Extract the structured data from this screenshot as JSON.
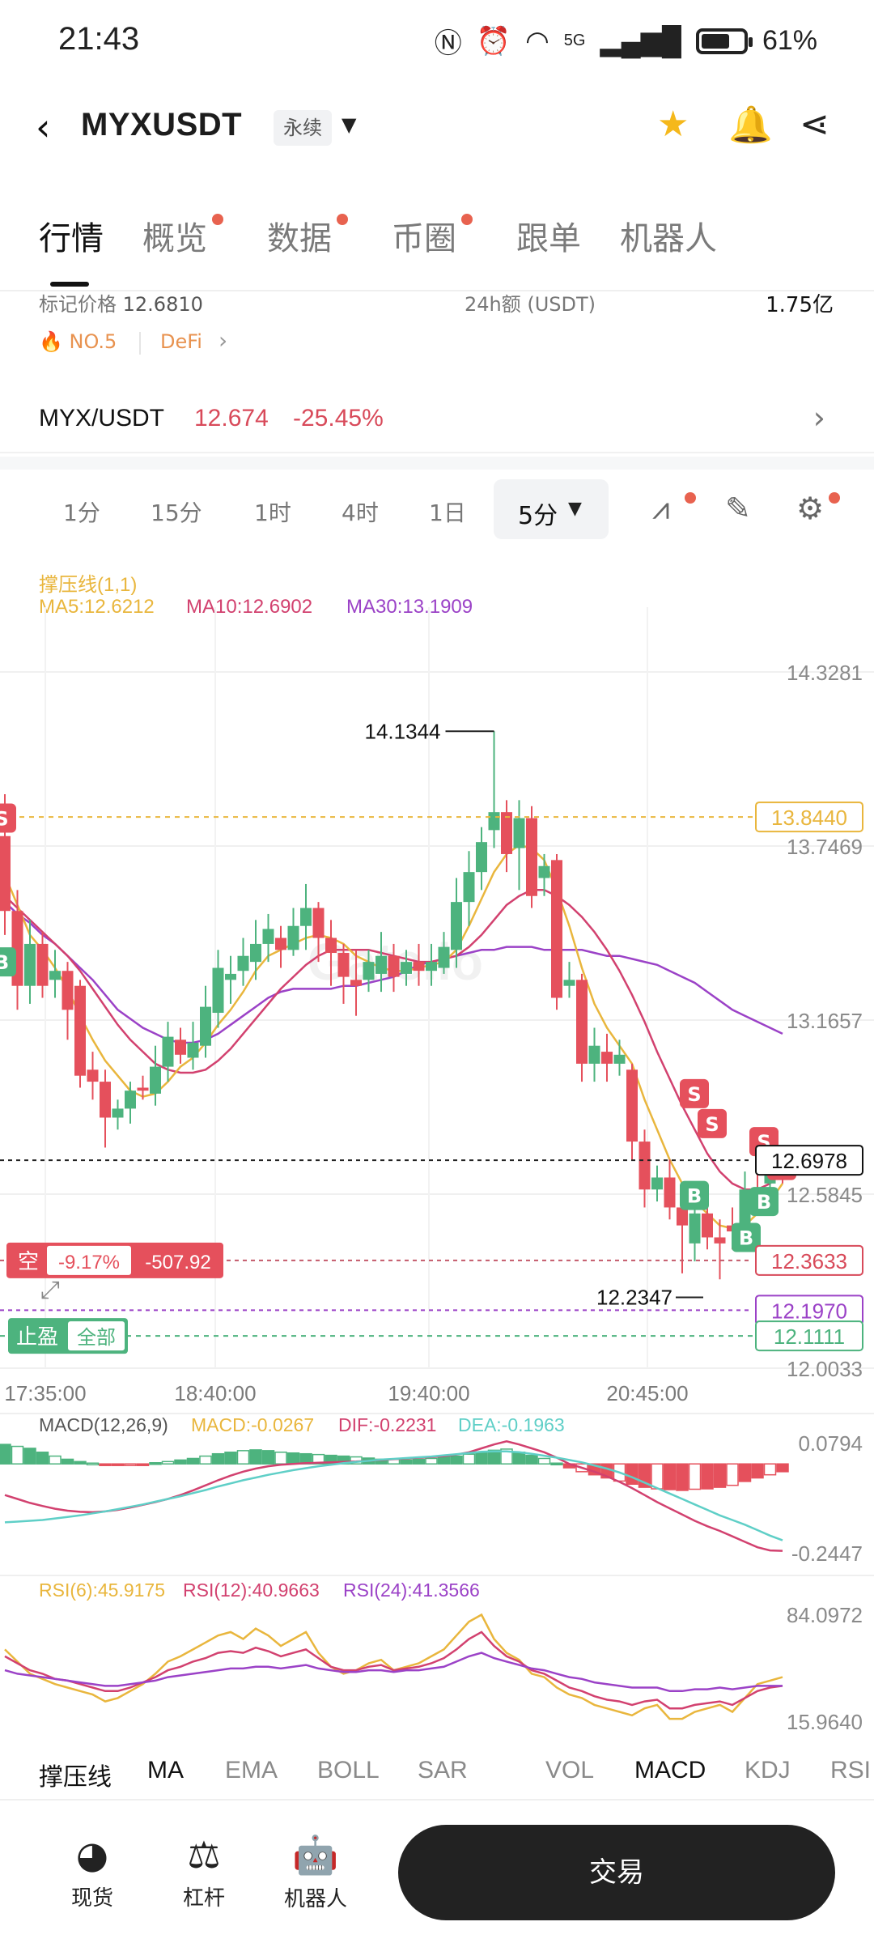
{
  "status_bar": {
    "time": "21:43",
    "battery": "61%",
    "network": "5G"
  },
  "header": {
    "title": "MYXUSDT",
    "contract_type": "永续"
  },
  "tabs": [
    {
      "label": "行情",
      "active": true,
      "dot": false
    },
    {
      "label": "概览",
      "active": false,
      "dot": true
    },
    {
      "label": "数据",
      "active": false,
      "dot": true
    },
    {
      "label": "币圈",
      "active": false,
      "dot": true
    },
    {
      "label": "跟单",
      "active": false,
      "dot": false
    },
    {
      "label": "机器人",
      "active": false,
      "dot": false
    }
  ],
  "info": {
    "mark_price_label": "标记价格",
    "mark_price": "12.6810",
    "volume_label": "24h额 (USDT)",
    "volume_value": "1.75亿",
    "rank_badge": "NO.5",
    "sector_badge": "DeFi"
  },
  "pair": {
    "name": "MYX/USDT",
    "price": "12.674",
    "change": "-25.45%"
  },
  "timeframes": [
    "1分",
    "15分",
    "1时",
    "4时",
    "1日"
  ],
  "timeframe_active": "5分",
  "legend": {
    "indicator": "撑压线(1,1)",
    "ma5": "MA5:12.6212",
    "ma10": "MA10:12.6902",
    "ma30": "MA30:13.1909"
  },
  "colors": {
    "up": "#4db37e",
    "down": "#e5505c",
    "ma5": "#e9b63d",
    "ma10": "#d2416f",
    "ma30": "#9b42c7",
    "dea": "#5fcfc7"
  },
  "price_axis": [
    "14.3281",
    "13.7469",
    "13.1657",
    "12.5845",
    "12.0033"
  ],
  "price_tags": {
    "resistance": "13.8440",
    "current": "12.6978",
    "position_price": "12.3633",
    "take_profit": "12.1970",
    "support": "12.1111",
    "high_label": "14.1344",
    "low_label": "12.2347"
  },
  "position": {
    "side": "空",
    "pnl_percent": "-9.17%",
    "pnl_value": "-507.92",
    "tp_label": "止盈",
    "tp_scope": "全部"
  },
  "time_axis": [
    "17:35:00",
    "18:40:00",
    "19:40:00",
    "20:45:00"
  ],
  "macd": {
    "title": "MACD(12,26,9)",
    "macd": "MACD:-0.0267",
    "dif": "DIF:-0.2231",
    "dea": "DEA:-0.1963",
    "axis_top": "0.0794",
    "axis_bottom": "-0.2447"
  },
  "rsi": {
    "rsi6": "RSI(6):45.9175",
    "rsi12": "RSI(12):40.9663",
    "rsi24": "RSI(24):41.3566",
    "axis_top": "84.0972",
    "axis_bottom": "15.9640"
  },
  "indicators": [
    "撑压线",
    "MA",
    "EMA",
    "BOLL",
    "SAR",
    "VOL",
    "MACD",
    "KDJ",
    "RSI"
  ],
  "watermark": "Gate.io",
  "bottom_nav": [
    {
      "label": "现货",
      "icon": "spot-icon"
    },
    {
      "label": "杠杆",
      "icon": "margin-icon"
    },
    {
      "label": "机器人",
      "icon": "robot-icon"
    }
  ],
  "trade_button": "交易",
  "chart_data": {
    "type": "candlestick",
    "price_range": [
      12.0033,
      14.3281
    ],
    "candles": [
      [
        13.78,
        13.53,
        13.92,
        13.45
      ],
      [
        13.53,
        13.28,
        13.6,
        13.2
      ],
      [
        13.28,
        13.42,
        13.5,
        13.22
      ],
      [
        13.42,
        13.28,
        13.46,
        13.24
      ],
      [
        13.3,
        13.33,
        13.4,
        13.24
      ],
      [
        13.33,
        13.2,
        13.36,
        13.1
      ],
      [
        13.28,
        12.98,
        13.3,
        12.94
      ],
      [
        13.0,
        12.96,
        13.06,
        12.9
      ],
      [
        12.96,
        12.84,
        13.0,
        12.74
      ],
      [
        12.84,
        12.87,
        12.9,
        12.8
      ],
      [
        12.87,
        12.93,
        12.96,
        12.82
      ],
      [
        12.94,
        12.93,
        12.98,
        12.9
      ],
      [
        12.92,
        13.01,
        13.08,
        12.88
      ],
      [
        13.01,
        13.11,
        13.16,
        12.96
      ],
      [
        13.1,
        13.05,
        13.14,
        13.02
      ],
      [
        13.04,
        13.09,
        13.16,
        13.0
      ],
      [
        13.08,
        13.21,
        13.28,
        13.04
      ],
      [
        13.19,
        13.34,
        13.4,
        13.14
      ],
      [
        13.3,
        13.32,
        13.38,
        13.22
      ],
      [
        13.33,
        13.38,
        13.44,
        13.28
      ],
      [
        13.36,
        13.42,
        13.5,
        13.3
      ],
      [
        13.42,
        13.47,
        13.52,
        13.36
      ],
      [
        13.44,
        13.4,
        13.48,
        13.34
      ],
      [
        13.4,
        13.48,
        13.54,
        13.38
      ],
      [
        13.48,
        13.54,
        13.62,
        13.4
      ],
      [
        13.54,
        13.44,
        13.56,
        13.36
      ],
      [
        13.44,
        13.39,
        13.5,
        13.28
      ],
      [
        13.39,
        13.31,
        13.42,
        13.22
      ],
      [
        13.3,
        13.28,
        13.4,
        13.18
      ],
      [
        13.3,
        13.36,
        13.4,
        13.26
      ],
      [
        13.32,
        13.38,
        13.46,
        13.26
      ],
      [
        13.38,
        13.31,
        13.42,
        13.26
      ],
      [
        13.32,
        13.36,
        13.4,
        13.28
      ],
      [
        13.36,
        13.33,
        13.42,
        13.28
      ],
      [
        13.33,
        13.36,
        13.42,
        13.28
      ],
      [
        13.34,
        13.41,
        13.46,
        13.32
      ],
      [
        13.4,
        13.56,
        13.64,
        13.34
      ],
      [
        13.56,
        13.66,
        13.73,
        13.48
      ],
      [
        13.66,
        13.76,
        13.81,
        13.6
      ],
      [
        13.8,
        13.86,
        14.13,
        13.74
      ],
      [
        13.86,
        13.72,
        13.9,
        13.66
      ],
      [
        13.74,
        13.84,
        13.9,
        13.6
      ],
      [
        13.84,
        13.58,
        13.88,
        13.54
      ],
      [
        13.64,
        13.68,
        13.72,
        13.58
      ],
      [
        13.7,
        13.24,
        13.72,
        13.2
      ],
      [
        13.28,
        13.3,
        13.36,
        13.24
      ],
      [
        13.3,
        13.02,
        13.32,
        12.96
      ],
      [
        13.02,
        13.08,
        13.14,
        12.96
      ],
      [
        13.06,
        13.02,
        13.12,
        12.96
      ],
      [
        13.02,
        13.05,
        13.1,
        12.98
      ],
      [
        13.0,
        12.76,
        13.02,
        12.7
      ],
      [
        12.76,
        12.6,
        12.8,
        12.54
      ],
      [
        12.6,
        12.64,
        12.68,
        12.56
      ],
      [
        12.64,
        12.54,
        12.7,
        12.5
      ],
      [
        12.54,
        12.48,
        12.56,
        12.32
      ],
      [
        12.42,
        12.52,
        12.56,
        12.36
      ],
      [
        12.52,
        12.44,
        12.58,
        12.4
      ],
      [
        12.44,
        12.42,
        12.5,
        12.3
      ],
      [
        12.48,
        12.46,
        12.54,
        12.4
      ],
      [
        12.44,
        12.6,
        12.66,
        12.4
      ],
      [
        12.6,
        12.58,
        12.66,
        12.52
      ],
      [
        12.62,
        12.68,
        12.76,
        12.54
      ],
      [
        12.66,
        12.65,
        12.7,
        12.62
      ]
    ],
    "trade_markers": [
      {
        "type": "S",
        "index": 0
      },
      {
        "type": "B",
        "index": 0
      },
      {
        "type": "S",
        "index": 53
      },
      {
        "type": "S",
        "index": 54
      },
      {
        "type": "B",
        "index": 53
      },
      {
        "type": "S",
        "index": 57
      },
      {
        "type": "S",
        "index": 58
      },
      {
        "type": "B",
        "index": 57
      },
      {
        "type": "B",
        "index": 56
      }
    ],
    "ma5": [
      13.65,
      13.55,
      13.45,
      13.4,
      13.34,
      13.27,
      13.18,
      13.1,
      13.03,
      12.98,
      12.93,
      12.91,
      12.92,
      12.96,
      13.01,
      13.04,
      13.09,
      13.15,
      13.2,
      13.26,
      13.33,
      13.38,
      13.4,
      13.42,
      13.44,
      13.45,
      13.44,
      13.42,
      13.38,
      13.36,
      13.34,
      13.33,
      13.33,
      13.34,
      13.35,
      13.36,
      13.4,
      13.48,
      13.57,
      13.66,
      13.72,
      13.75,
      13.74,
      13.7,
      13.6,
      13.48,
      13.34,
      13.22,
      13.14,
      13.08,
      13.02,
      12.9,
      12.8,
      12.7,
      12.62,
      12.56,
      12.52,
      12.48,
      12.47,
      12.48,
      12.52,
      12.56,
      12.62
    ],
    "ma10": [
      13.58,
      13.54,
      13.5,
      13.46,
      13.42,
      13.38,
      13.33,
      13.27,
      13.21,
      13.15,
      13.1,
      13.06,
      13.02,
      13.0,
      12.99,
      12.99,
      13.0,
      13.03,
      13.07,
      13.12,
      13.17,
      13.22,
      13.27,
      13.31,
      13.35,
      13.38,
      13.4,
      13.4,
      13.4,
      13.4,
      13.39,
      13.38,
      13.37,
      13.36,
      13.36,
      13.37,
      13.38,
      13.41,
      13.45,
      13.5,
      13.55,
      13.58,
      13.6,
      13.6,
      13.58,
      13.55,
      13.51,
      13.46,
      13.4,
      13.33,
      13.25,
      13.16,
      13.06,
      12.97,
      12.88,
      12.8,
      12.72,
      12.66,
      12.62,
      12.6,
      12.6,
      12.62,
      12.66
    ],
    "ma30": [
      13.56,
      13.52,
      13.49,
      13.45,
      13.42,
      13.38,
      13.34,
      13.3,
      13.25,
      13.2,
      13.17,
      13.14,
      13.12,
      13.1,
      13.09,
      13.09,
      13.1,
      13.12,
      13.15,
      13.18,
      13.21,
      13.24,
      13.26,
      13.27,
      13.27,
      13.27,
      13.27,
      13.28,
      13.28,
      13.29,
      13.3,
      13.31,
      13.33,
      13.35,
      13.36,
      13.37,
      13.38,
      13.39,
      13.4,
      13.4,
      13.41,
      13.41,
      13.41,
      13.4,
      13.4,
      13.4,
      13.4,
      13.39,
      13.38,
      13.38,
      13.37,
      13.36,
      13.35,
      13.33,
      13.31,
      13.29,
      13.26,
      13.23,
      13.2,
      13.18,
      13.16,
      13.14,
      13.12
    ],
    "macd_range": [
      -0.2447,
      0.0794
    ],
    "macd_hist": [
      0.05,
      0.045,
      0.04,
      0.03,
      0.02,
      0.012,
      0.006,
      0.002,
      -0.002,
      -0.004,
      -0.003,
      -0.001,
      0.003,
      0.006,
      0.01,
      0.014,
      0.02,
      0.026,
      0.03,
      0.034,
      0.036,
      0.034,
      0.03,
      0.028,
      0.026,
      0.024,
      0.022,
      0.02,
      0.018,
      0.015,
      0.012,
      0.012,
      0.01,
      0.012,
      0.014,
      0.018,
      0.02,
      0.025,
      0.03,
      0.035,
      0.038,
      0.03,
      0.022,
      0.014,
      0.002,
      -0.01,
      -0.02,
      -0.028,
      -0.036,
      -0.044,
      -0.052,
      -0.06,
      -0.064,
      -0.066,
      -0.068,
      -0.065,
      -0.064,
      -0.06,
      -0.055,
      -0.045,
      -0.036,
      -0.028,
      -0.02
    ],
    "dif": [
      -0.08,
      -0.09,
      -0.1,
      -0.108,
      -0.115,
      -0.12,
      -0.123,
      -0.124,
      -0.122,
      -0.118,
      -0.112,
      -0.105,
      -0.098,
      -0.09,
      -0.08,
      -0.068,
      -0.055,
      -0.042,
      -0.03,
      -0.02,
      -0.012,
      -0.006,
      -0.002,
      0.0,
      0.002,
      0.003,
      0.004,
      0.005,
      0.006,
      0.008,
      0.01,
      0.012,
      0.014,
      0.016,
      0.018,
      0.02,
      0.024,
      0.03,
      0.04,
      0.05,
      0.058,
      0.05,
      0.04,
      0.03,
      0.016,
      0.0,
      -0.01,
      -0.02,
      -0.032,
      -0.046,
      -0.062,
      -0.08,
      -0.098,
      -0.114,
      -0.13,
      -0.146,
      -0.16,
      -0.172,
      -0.186,
      -0.2,
      -0.214,
      -0.222,
      -0.223
    ],
    "dea": [
      -0.15,
      -0.148,
      -0.146,
      -0.144,
      -0.14,
      -0.136,
      -0.132,
      -0.127,
      -0.122,
      -0.116,
      -0.11,
      -0.104,
      -0.097,
      -0.09,
      -0.083,
      -0.075,
      -0.067,
      -0.058,
      -0.05,
      -0.042,
      -0.035,
      -0.028,
      -0.022,
      -0.016,
      -0.011,
      -0.006,
      -0.002,
      0.002,
      0.005,
      0.008,
      0.011,
      0.013,
      0.015,
      0.017,
      0.019,
      0.022,
      0.025,
      0.028,
      0.031,
      0.032,
      0.032,
      0.03,
      0.026,
      0.021,
      0.016,
      0.01,
      0.004,
      -0.004,
      -0.012,
      -0.022,
      -0.034,
      -0.048,
      -0.062,
      -0.076,
      -0.09,
      -0.104,
      -0.118,
      -0.132,
      -0.144,
      -0.156,
      -0.17,
      -0.184,
      -0.196
    ],
    "rsi_range": [
      15.964,
      84.0972
    ],
    "rsi6": [
      62,
      55,
      48,
      45,
      42,
      40,
      38,
      36,
      32,
      34,
      38,
      42,
      48,
      55,
      58,
      62,
      66,
      70,
      72,
      68,
      74,
      70,
      64,
      68,
      72,
      60,
      52,
      48,
      50,
      54,
      56,
      50,
      52,
      54,
      58,
      62,
      70,
      78,
      82,
      68,
      60,
      56,
      48,
      46,
      40,
      36,
      34,
      30,
      28,
      26,
      24,
      28,
      30,
      22,
      22,
      26,
      28,
      30,
      26,
      34,
      42,
      44,
      46
    ],
    "rsi12": [
      58,
      54,
      50,
      48,
      45,
      44,
      42,
      40,
      38,
      38,
      40,
      43,
      46,
      50,
      52,
      55,
      57,
      60,
      61,
      60,
      63,
      61,
      58,
      60,
      62,
      57,
      52,
      50,
      50,
      52,
      53,
      50,
      51,
      52,
      54,
      57,
      62,
      68,
      72,
      64,
      58,
      55,
      50,
      48,
      44,
      40,
      38,
      35,
      33,
      32,
      30,
      32,
      33,
      28,
      28,
      30,
      31,
      32,
      30,
      34,
      38,
      40,
      41
    ],
    "rsi24": [
      50,
      48,
      47,
      46,
      45,
      44,
      43,
      42,
      41,
      41,
      42,
      43,
      44,
      46,
      47,
      48,
      49,
      50,
      51,
      51,
      52,
      52,
      51,
      52,
      53,
      51,
      50,
      49,
      49,
      50,
      50,
      49,
      50,
      50,
      51,
      52,
      55,
      58,
      60,
      57,
      55,
      53,
      51,
      50,
      48,
      46,
      45,
      43,
      42,
      41,
      40,
      40,
      40,
      38,
      38,
      39,
      39,
      40,
      39,
      40,
      41,
      41,
      41
    ]
  }
}
